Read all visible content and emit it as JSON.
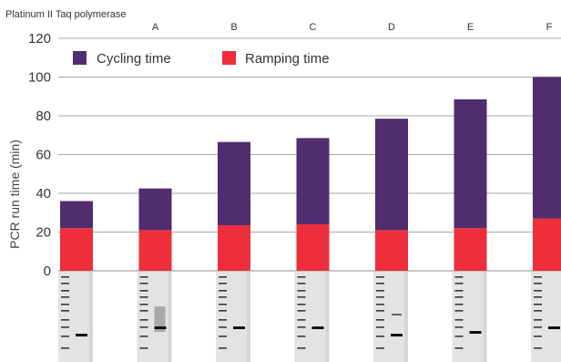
{
  "subtitle": "Platinum II Taq polymerase",
  "legend": [
    {
      "name": "Cycling time",
      "color": "#4f2d6e"
    },
    {
      "name": "Ramping time",
      "color": "#ee2e3b"
    }
  ],
  "chart_data": {
    "type": "bar",
    "stacked": true,
    "categories": [
      "",
      "A",
      "B",
      "C",
      "D",
      "E",
      "F"
    ],
    "series": [
      {
        "name": "Ramping time",
        "color": "#ee2e3b",
        "values": [
          22,
          21,
          23.5,
          24,
          21,
          22,
          27
        ]
      },
      {
        "name": "Cycling time",
        "color": "#4f2d6e",
        "values": [
          14,
          21.5,
          43,
          44.5,
          57.5,
          66.5,
          73
        ]
      }
    ],
    "ylabel": "PCR run time (min)",
    "ylim": [
      0,
      120
    ],
    "yticks": [
      0,
      20,
      40,
      60,
      80,
      100,
      120
    ],
    "grid": true,
    "legend_position": "top-left"
  },
  "gel_images": [
    "",
    "A",
    "B",
    "C",
    "D",
    "E",
    "F"
  ]
}
